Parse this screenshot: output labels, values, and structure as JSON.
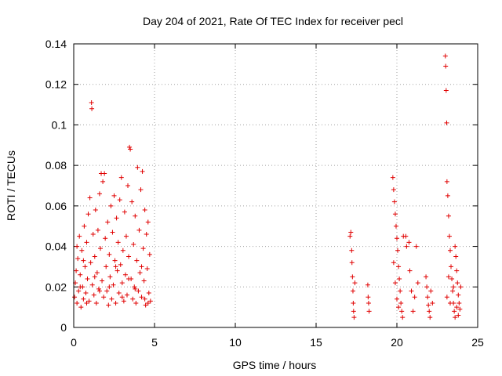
{
  "chart_data": {
    "type": "scatter",
    "title": "Day 204 of 2021, Rate Of TEC Index for receiver pecl",
    "xlabel": "GPS time / hours",
    "ylabel": "ROTI / TECUs",
    "xlim": [
      0,
      25
    ],
    "ylim": [
      0,
      0.14
    ],
    "xticks": [
      0,
      5,
      10,
      15,
      20,
      25
    ],
    "xtick_labels": [
      "0",
      "5",
      "10",
      "15",
      "20",
      "25"
    ],
    "yticks": [
      0,
      0.02,
      0.04,
      0.06,
      0.08,
      0.1,
      0.12,
      0.14
    ],
    "ytick_labels": [
      "0",
      "0.02",
      "0.04",
      "0.06",
      "0.08",
      "0.1",
      "0.12",
      "0.14"
    ],
    "grid": true,
    "marker": "plus",
    "color": "#e00000",
    "series": [
      {
        "name": "ROTI",
        "points": [
          [
            0.05,
            0.015
          ],
          [
            0.1,
            0.022
          ],
          [
            0.15,
            0.028
          ],
          [
            0.2,
            0.012
          ],
          [
            0.25,
            0.034
          ],
          [
            0.3,
            0.018
          ],
          [
            0.35,
            0.045
          ],
          [
            0.4,
            0.026
          ],
          [
            0.45,
            0.01
          ],
          [
            0.5,
            0.038
          ],
          [
            0.55,
            0.02
          ],
          [
            0.6,
            0.014
          ],
          [
            0.65,
            0.05
          ],
          [
            0.7,
            0.03
          ],
          [
            0.75,
            0.017
          ],
          [
            0.8,
            0.042
          ],
          [
            0.85,
            0.024
          ],
          [
            0.9,
            0.056
          ],
          [
            0.95,
            0.013
          ],
          [
            1.0,
            0.064
          ],
          [
            1.05,
            0.032
          ],
          [
            1.1,
            0.111
          ],
          [
            1.12,
            0.108
          ],
          [
            1.15,
            0.021
          ],
          [
            1.2,
            0.046
          ],
          [
            1.25,
            0.016
          ],
          [
            1.3,
            0.035
          ],
          [
            1.35,
            0.058
          ],
          [
            1.4,
            0.012
          ],
          [
            1.45,
            0.027
          ],
          [
            1.5,
            0.048
          ],
          [
            1.55,
            0.019
          ],
          [
            1.6,
            0.066
          ],
          [
            1.65,
            0.039
          ],
          [
            1.7,
            0.076
          ],
          [
            1.75,
            0.023
          ],
          [
            1.8,
            0.072
          ],
          [
            1.85,
            0.015
          ],
          [
            1.9,
            0.076
          ],
          [
            1.95,
            0.044
          ],
          [
            2.0,
            0.03
          ],
          [
            2.05,
            0.018
          ],
          [
            2.1,
            0.052
          ],
          [
            2.15,
            0.011
          ],
          [
            2.2,
            0.036
          ],
          [
            2.25,
            0.025
          ],
          [
            2.3,
            0.06
          ],
          [
            2.35,
            0.014
          ],
          [
            2.4,
            0.047
          ],
          [
            2.45,
            0.021
          ],
          [
            2.5,
            0.065
          ],
          [
            2.55,
            0.033
          ],
          [
            2.6,
            0.012
          ],
          [
            2.65,
            0.054
          ],
          [
            2.7,
            0.028
          ],
          [
            2.75,
            0.042
          ],
          [
            2.8,
            0.017
          ],
          [
            2.85,
            0.063
          ],
          [
            2.9,
            0.031
          ],
          [
            2.95,
            0.074
          ],
          [
            3.0,
            0.022
          ],
          [
            3.05,
            0.038
          ],
          [
            3.1,
            0.013
          ],
          [
            3.15,
            0.057
          ],
          [
            3.2,
            0.026
          ],
          [
            3.25,
            0.045
          ],
          [
            3.3,
            0.016
          ],
          [
            3.35,
            0.07
          ],
          [
            3.4,
            0.035
          ],
          [
            3.45,
            0.089
          ],
          [
            3.5,
            0.088
          ],
          [
            3.55,
            0.024
          ],
          [
            3.6,
            0.062
          ],
          [
            3.65,
            0.014
          ],
          [
            3.7,
            0.041
          ],
          [
            3.75,
            0.02
          ],
          [
            3.8,
            0.055
          ],
          [
            3.85,
            0.012
          ],
          [
            3.9,
            0.033
          ],
          [
            3.95,
            0.079
          ],
          [
            4.0,
            0.018
          ],
          [
            4.05,
            0.048
          ],
          [
            4.1,
            0.027
          ],
          [
            4.15,
            0.068
          ],
          [
            4.2,
            0.015
          ],
          [
            4.25,
            0.077
          ],
          [
            4.3,
            0.039
          ],
          [
            4.35,
            0.023
          ],
          [
            4.4,
            0.058
          ],
          [
            4.45,
            0.011
          ],
          [
            4.5,
            0.046
          ],
          [
            4.55,
            0.029
          ],
          [
            4.6,
            0.052
          ],
          [
            4.65,
            0.017
          ],
          [
            4.7,
            0.036
          ],
          [
            4.75,
            0.013
          ],
          [
            0.2,
            0.04
          ],
          [
            0.6,
            0.033
          ],
          [
            1.3,
            0.025
          ],
          [
            2.2,
            0.02
          ],
          [
            3.0,
            0.015
          ],
          [
            3.8,
            0.019
          ],
          [
            4.4,
            0.014
          ],
          [
            0.8,
            0.012
          ],
          [
            1.6,
            0.018
          ],
          [
            2.6,
            0.03
          ],
          [
            3.4,
            0.024
          ],
          [
            4.2,
            0.03
          ],
          [
            0.4,
            0.02
          ],
          [
            4.6,
            0.012
          ],
          [
            17.1,
            0.045
          ],
          [
            17.15,
            0.047
          ],
          [
            17.2,
            0.038
          ],
          [
            17.22,
            0.032
          ],
          [
            17.25,
            0.025
          ],
          [
            17.28,
            0.018
          ],
          [
            17.3,
            0.012
          ],
          [
            17.32,
            0.008
          ],
          [
            17.35,
            0.005
          ],
          [
            17.4,
            0.022
          ],
          [
            18.2,
            0.021
          ],
          [
            18.22,
            0.015
          ],
          [
            18.25,
            0.012
          ],
          [
            18.28,
            0.008
          ],
          [
            19.75,
            0.074
          ],
          [
            19.8,
            0.068
          ],
          [
            19.85,
            0.062
          ],
          [
            19.9,
            0.056
          ],
          [
            19.95,
            0.05
          ],
          [
            20.0,
            0.044
          ],
          [
            20.05,
            0.038
          ],
          [
            20.1,
            0.03
          ],
          [
            20.15,
            0.024
          ],
          [
            20.2,
            0.018
          ],
          [
            20.25,
            0.012
          ],
          [
            20.3,
            0.008
          ],
          [
            20.35,
            0.005
          ],
          [
            19.8,
            0.032
          ],
          [
            19.9,
            0.022
          ],
          [
            20.0,
            0.014
          ],
          [
            20.1,
            0.01
          ],
          [
            20.4,
            0.045
          ],
          [
            20.55,
            0.045
          ],
          [
            20.6,
            0.04
          ],
          [
            20.75,
            0.042
          ],
          [
            20.8,
            0.028
          ],
          [
            20.9,
            0.018
          ],
          [
            21.0,
            0.008
          ],
          [
            21.1,
            0.015
          ],
          [
            21.2,
            0.04
          ],
          [
            21.3,
            0.022
          ],
          [
            21.8,
            0.025
          ],
          [
            21.85,
            0.02
          ],
          [
            21.9,
            0.015
          ],
          [
            21.95,
            0.011
          ],
          [
            22.0,
            0.008
          ],
          [
            22.05,
            0.005
          ],
          [
            22.1,
            0.018
          ],
          [
            22.2,
            0.012
          ],
          [
            23.0,
            0.134
          ],
          [
            23.02,
            0.129
          ],
          [
            23.05,
            0.117
          ],
          [
            23.08,
            0.101
          ],
          [
            23.1,
            0.072
          ],
          [
            23.15,
            0.065
          ],
          [
            23.2,
            0.055
          ],
          [
            23.25,
            0.045
          ],
          [
            23.3,
            0.038
          ],
          [
            23.35,
            0.03
          ],
          [
            23.4,
            0.024
          ],
          [
            23.45,
            0.018
          ],
          [
            23.5,
            0.012
          ],
          [
            23.55,
            0.008
          ],
          [
            23.6,
            0.005
          ],
          [
            23.65,
            0.035
          ],
          [
            23.7,
            0.028
          ],
          [
            23.75,
            0.022
          ],
          [
            23.8,
            0.016
          ],
          [
            23.85,
            0.012
          ],
          [
            23.9,
            0.009
          ],
          [
            23.95,
            0.02
          ],
          [
            23.1,
            0.015
          ],
          [
            23.3,
            0.012
          ],
          [
            23.5,
            0.02
          ],
          [
            23.7,
            0.01
          ],
          [
            23.6,
            0.04
          ],
          [
            23.2,
            0.025
          ],
          [
            23.8,
            0.006
          ]
        ]
      }
    ]
  }
}
